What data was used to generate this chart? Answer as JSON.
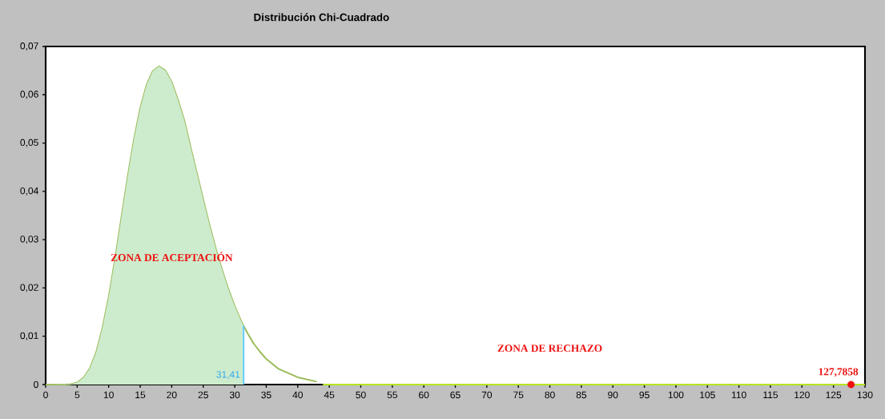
{
  "chart_data": {
    "type": "line",
    "title": "Distribución Chi-Cuadrado",
    "xlim": [
      0,
      130
    ],
    "xticks": [
      0,
      5,
      10,
      15,
      20,
      25,
      30,
      35,
      40,
      45,
      50,
      55,
      60,
      65,
      70,
      75,
      80,
      85,
      90,
      95,
      100,
      105,
      110,
      115,
      120,
      125,
      130
    ],
    "ylim": [
      0,
      0.07
    ],
    "yticks": [
      0,
      {
        "value": 0.01,
        "label": "0,01"
      },
      {
        "value": 0.02,
        "label": "0,02"
      },
      {
        "value": 0.03,
        "label": "0,03"
      },
      {
        "value": 0.04,
        "label": "0,04"
      },
      {
        "value": 0.05,
        "label": "0,05"
      },
      {
        "value": 0.06,
        "label": "0,06"
      },
      {
        "value": 0.07,
        "label": "0,07"
      }
    ],
    "grid": false,
    "series": [
      {
        "color": "#9bbb59",
        "x": [
          0,
          3,
          4,
          5,
          6,
          7,
          8,
          9,
          10,
          11,
          12,
          13,
          14,
          15,
          16,
          17,
          18,
          19,
          20,
          21,
          22,
          23,
          24,
          25,
          26,
          27,
          28,
          29,
          30,
          31,
          32,
          33,
          34,
          35,
          37,
          40,
          43
        ],
        "values": [
          0,
          0,
          0.0001,
          0.0004,
          0.0014,
          0.0033,
          0.0066,
          0.0116,
          0.0181,
          0.0259,
          0.0344,
          0.0429,
          0.0507,
          0.0572,
          0.062,
          0.0649,
          0.0659,
          0.065,
          0.0626,
          0.0589,
          0.0547,
          0.0491,
          0.0437,
          0.0383,
          0.033,
          0.0281,
          0.0237,
          0.0197,
          0.0162,
          0.0132,
          0.0107,
          0.0085,
          0.0068,
          0.0053,
          0.0032,
          0.0015,
          0.0006
        ]
      },
      {
        "type": "area",
        "color": "#cdeccd",
        "x": [
          0,
          4,
          5,
          6,
          7,
          8,
          9,
          10,
          11,
          12,
          13,
          14,
          15,
          16,
          17,
          18,
          19,
          20,
          21,
          22,
          23,
          24,
          25,
          26,
          27,
          28,
          29,
          30,
          31,
          31.41
        ],
        "values": [
          0,
          0.0001,
          0.0004,
          0.0014,
          0.0033,
          0.0066,
          0.0116,
          0.0181,
          0.0259,
          0.0344,
          0.0429,
          0.0507,
          0.0572,
          0.062,
          0.0649,
          0.0659,
          0.065,
          0.0626,
          0.0589,
          0.0547,
          0.0491,
          0.0437,
          0.0383,
          0.033,
          0.0281,
          0.0237,
          0.0197,
          0.0162,
          0.0132,
          0.0122
        ]
      },
      {
        "color": "#66ccff",
        "x": [
          31.41,
          31.41
        ],
        "values": [
          0,
          0.0122
        ]
      },
      {
        "color": "#b5e61d",
        "x": [
          44,
          130
        ],
        "values": [
          0,
          0
        ]
      },
      {
        "type": "scatter",
        "color": "#ee1111",
        "x": [
          127.7858
        ],
        "values": [
          0
        ]
      }
    ],
    "annotations": [
      "ZONA DE ACEPTACIÓN",
      "ZONA DE RECHAZO",
      {
        "text": "31,41",
        "x": 31.41,
        "y": 0
      },
      {
        "text": "127,7858",
        "x": 127.7858,
        "y": 0
      }
    ]
  }
}
